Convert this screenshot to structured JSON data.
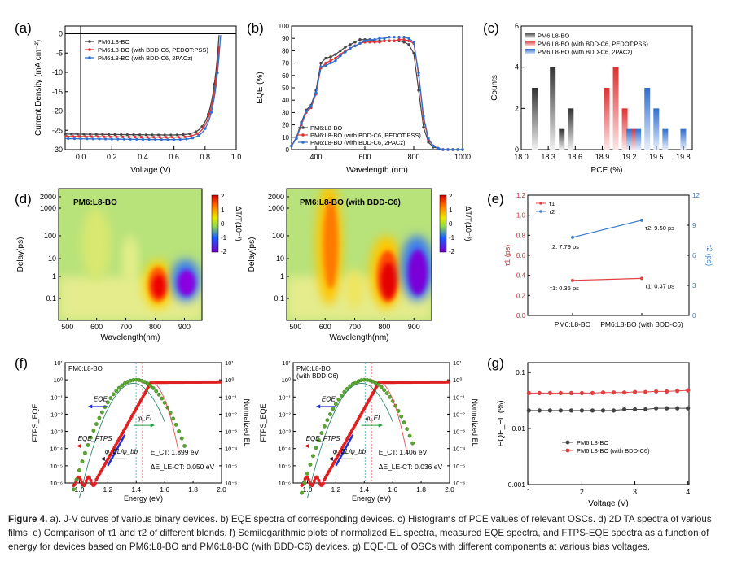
{
  "figure": {
    "panel_labels": [
      "(a)",
      "(b)",
      "(c)",
      "(d)",
      "(e)",
      "(f)",
      "(g)"
    ],
    "caption": {
      "label": "Figure 4.",
      "text": " a). J-V curves of various binary devices. b) EQE spectra of corresponding devices. c) Histograms of PCE values of relevant OSCs. d) 2D TA spectra of various films. e) Comparison of τ1 and τ2 of different blends. f) Semilogarithmic plots of normalized EL spectra, measured EQE spectra, and FTPS-EQE spectra as a function of energy for devices based on PM6:L8-BO and PM6:L8-BO (with BDD-C6) devices. g) EQE-EL of OSCs with different components at various bias voltages."
    }
  },
  "chart_data": [
    {
      "panel": "(a)",
      "type": "line",
      "xlabel": "Voltage (V)",
      "ylabel": "Current Density (mA cm⁻²)",
      "xlim": [
        -0.1,
        1.0
      ],
      "ylim": [
        -30,
        2
      ],
      "xticks": [
        "0.0",
        "0.2",
        "0.4",
        "0.6",
        "0.8",
        "1.0"
      ],
      "yticks": [
        "0",
        "-5",
        "-10",
        "-15",
        "-20",
        "-25",
        "-30"
      ],
      "series": [
        {
          "name": "PM6:L8-BO",
          "color": "#444444",
          "jsc": -26.0,
          "voc": 0.89
        },
        {
          "name": "PM6:L8-BO (with BDD-C6, PEDOT:PSS)",
          "color": "#e03030",
          "jsc": -26.6,
          "voc": 0.895
        },
        {
          "name": "PM6:L8-BO (with BDD-C6, 2PACz)",
          "color": "#2f6fd0",
          "jsc": -27.2,
          "voc": 0.9
        }
      ]
    },
    {
      "panel": "(b)",
      "type": "line",
      "xlabel": "Wavelength (nm)",
      "ylabel": "EQE (%)",
      "xlim": [
        300,
        1000
      ],
      "ylim": [
        0,
        100
      ],
      "xticks": [
        "400",
        "600",
        "800",
        "1000"
      ],
      "yticks": [
        "0",
        "10",
        "20",
        "30",
        "40",
        "50",
        "60",
        "70",
        "80",
        "90",
        "100"
      ],
      "x": [
        300,
        320,
        340,
        360,
        380,
        400,
        420,
        440,
        460,
        480,
        500,
        520,
        540,
        560,
        580,
        600,
        620,
        640,
        660,
        680,
        700,
        720,
        740,
        760,
        780,
        800,
        820,
        840,
        860,
        880,
        900,
        920,
        940,
        960,
        980,
        1000
      ],
      "series": [
        {
          "name": "PM6:L8-BO",
          "color": "#444444",
          "values": [
            3,
            10,
            22,
            32,
            36,
            48,
            70,
            74,
            75,
            77,
            80,
            83,
            85,
            87,
            89,
            89,
            89,
            88,
            88,
            88,
            88,
            88,
            88,
            87,
            85,
            78,
            48,
            18,
            6,
            2,
            1,
            0,
            0,
            0,
            0,
            0
          ]
        },
        {
          "name": "PM6:L8-BO (with BDD-C6, PEDOT:PSS)",
          "color": "#e03030",
          "values": [
            3,
            9,
            20,
            30,
            34,
            45,
            66,
            70,
            72,
            74,
            77,
            80,
            82,
            84,
            86,
            87,
            87,
            87,
            87,
            88,
            88,
            88,
            89,
            89,
            88,
            86,
            60,
            25,
            8,
            3,
            1,
            0,
            0,
            0,
            0,
            0
          ]
        },
        {
          "name": "PM6:L8-BO (with BDD-C6, 2PACz)",
          "color": "#2f6fd0",
          "values": [
            3,
            9,
            21,
            31,
            35,
            46,
            67,
            68,
            70,
            72,
            76,
            79,
            82,
            84,
            86,
            88,
            89,
            89,
            90,
            90,
            91,
            91,
            91,
            91,
            90,
            87,
            62,
            27,
            9,
            3,
            1,
            0,
            0,
            0,
            0,
            0
          ]
        }
      ]
    },
    {
      "panel": "(c)",
      "type": "bar",
      "xlabel": "PCE (%)",
      "ylabel": "Counts",
      "xlim": [
        18.0,
        19.9
      ],
      "ylim": [
        0,
        6
      ],
      "xticks": [
        "18.0",
        "18.3",
        "18.6",
        "18.9",
        "19.2",
        "19.5",
        "19.8"
      ],
      "yticks": [
        "0",
        "2",
        "4",
        "6"
      ],
      "series": [
        {
          "name": "PM6:L8-BO",
          "color": "#555555",
          "x": [
            18.15,
            18.35,
            18.45,
            18.55
          ],
          "values": [
            3,
            4,
            1,
            2
          ]
        },
        {
          "name": "PM6:L8-BO (with BDD-C6, PEDOT:PSS)",
          "color": "#e03030",
          "x": [
            18.95,
            19.05,
            19.15,
            19.25
          ],
          "values": [
            3,
            4,
            2,
            1
          ]
        },
        {
          "name": "PM6:L8-BO (with BDD-C6, 2PACz)",
          "color": "#2f6fd0",
          "x": [
            19.2,
            19.3,
            19.4,
            19.5,
            19.6,
            19.8
          ],
          "values": [
            1,
            1,
            3,
            2,
            1,
            1
          ]
        }
      ]
    },
    {
      "panel": "(d)",
      "type": "heatmap",
      "maps": [
        {
          "title": "PM6:L8-BO"
        },
        {
          "title": "PM6:L8-BO (with BDD-C6)"
        }
      ],
      "xlabel": "Wavelength(nm)",
      "ylabel": "Delay(ps)",
      "xticks": [
        "500",
        "600",
        "700",
        "800",
        "900"
      ],
      "yticks": [
        "2000",
        "1000",
        "100",
        "10",
        "1",
        "0.1"
      ],
      "colorbar_label": "ΔT/T(10⁻³)",
      "colorbar_ticks": [
        "2",
        "1",
        "0",
        "-1",
        "-2"
      ]
    },
    {
      "panel": "(e)",
      "type": "line",
      "categories": [
        "PM6:L8-BO",
        "PM6:L8-BO (with BDD-C6)"
      ],
      "ylabel_left": "τ1 (ps)",
      "ylabel_right": "τ2 (ps)",
      "ylim_left": [
        0,
        1.2
      ],
      "ylim_right": [
        0,
        12
      ],
      "yticks_left": [
        "0.0",
        "0.2",
        "0.4",
        "0.6",
        "0.8",
        "1.0",
        "1.2"
      ],
      "yticks_right": [
        "0",
        "3",
        "6",
        "9",
        "12"
      ],
      "series": [
        {
          "name": "τ1",
          "color": "#e04040",
          "values": [
            0.35,
            0.37
          ],
          "labels": [
            "τ1: 0.35 ps",
            "τ1: 0.37 ps"
          ]
        },
        {
          "name": "τ2",
          "color": "#3a7bc8",
          "values": [
            7.79,
            9.5
          ],
          "labels": [
            "τ2: 7.79 ps",
            "τ2: 9.50 ps"
          ]
        }
      ]
    },
    {
      "panel": "(f)",
      "type": "line",
      "xlabel": "Energy (eV)",
      "ylabel_left": "FTPS_EQE",
      "ylabel_right": "Normalized EL",
      "xticks": [
        "1.0",
        "1.2",
        "1.4",
        "1.6",
        "1.8",
        "2.0"
      ],
      "yticks": [
        "10¹",
        "10⁰",
        "10⁻¹",
        "10⁻²",
        "10⁻³",
        "10⁻⁴",
        "10⁻⁵",
        "10⁻⁶"
      ],
      "maps": [
        {
          "title": "PM6:L8-BO",
          "title2": "",
          "ect": "E_CT: 1.399 eV",
          "dele": "ΔE_LE-CT: 0.050 eV"
        },
        {
          "title": "PM6:L8-BO",
          "title2": "(with BDD-C6)",
          "ect": "E_CT: 1.406 eV",
          "dele": "ΔE_LE-CT: 0.036 eV"
        }
      ],
      "labels": {
        "eqe": "EQE",
        "eqe_ftps": "EQE_FTPS",
        "el": "φ_EL",
        "el_bb": "φ_EL/φ_bb"
      }
    },
    {
      "panel": "(g)",
      "type": "scatter",
      "xlabel": "Voltage (V)",
      "ylabel": "EQE_EL (%)",
      "xlim": [
        1,
        4
      ],
      "ylim_log": [
        0.001,
        0.1
      ],
      "xticks": [
        "1",
        "2",
        "3",
        "4"
      ],
      "yticks": [
        "0.1",
        "0.01",
        "0.001"
      ],
      "x": [
        1.0,
        1.2,
        1.4,
        1.6,
        1.8,
        2.0,
        2.2,
        2.4,
        2.6,
        2.8,
        3.0,
        3.2,
        3.4,
        3.6,
        3.8,
        4.0
      ],
      "series": [
        {
          "name": "PM6:L8-BO",
          "color": "#444444",
          "values": [
            0.021,
            0.021,
            0.021,
            0.021,
            0.021,
            0.021,
            0.021,
            0.021,
            0.021,
            0.022,
            0.022,
            0.022,
            0.023,
            0.023,
            0.023,
            0.023
          ]
        },
        {
          "name": "PM6:L8-BO (with BDD-C6)",
          "color": "#e04040",
          "values": [
            0.043,
            0.043,
            0.043,
            0.043,
            0.043,
            0.043,
            0.043,
            0.044,
            0.044,
            0.044,
            0.045,
            0.045,
            0.046,
            0.046,
            0.047,
            0.048
          ]
        }
      ]
    }
  ]
}
